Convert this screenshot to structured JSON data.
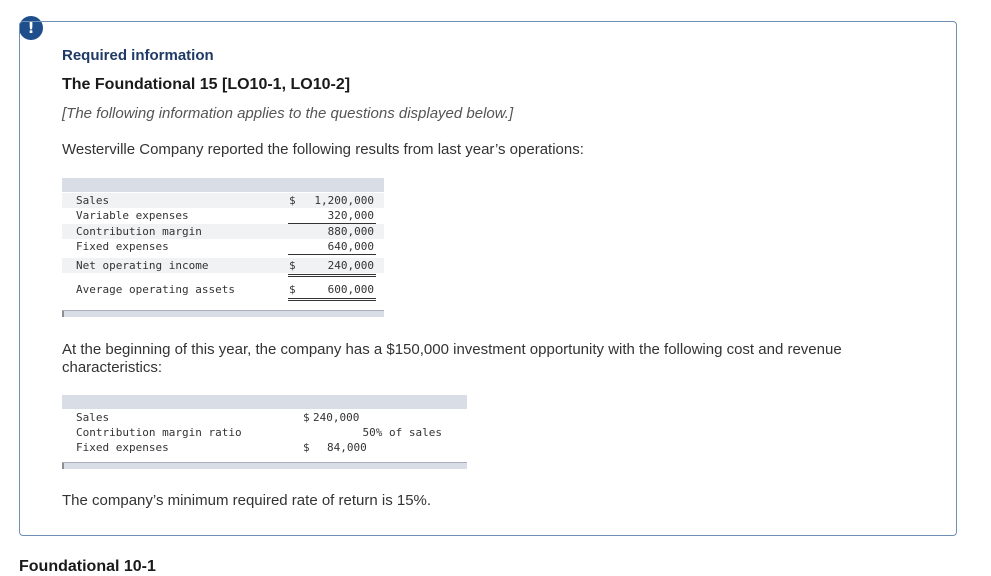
{
  "alert": {
    "icon": "exclamation-icon",
    "glyph": "!"
  },
  "header": {
    "required_label": "Required information",
    "title": "The Foundational 15 [LO10-1, LO10-2]",
    "note": "[The following information applies to the questions displayed below.]"
  },
  "intro": "Westerville Company reported the following results from last year’s operations:",
  "table1": {
    "rows": [
      {
        "label": "Sales",
        "currency": "$",
        "value": "1,200,000"
      },
      {
        "label": "Variable expenses",
        "currency": "",
        "value": "320,000"
      },
      {
        "label": "Contribution margin",
        "currency": "",
        "value": "880,000"
      },
      {
        "label": "Fixed expenses",
        "currency": "",
        "value": "640,000"
      },
      {
        "label": "Net operating income",
        "currency": "$",
        "value": "240,000"
      },
      {
        "label": "Average operating assets",
        "currency": "$",
        "value": "600,000"
      }
    ]
  },
  "opportunity_text": "At the beginning of this year, the company has a $150,000 investment opportunity with the following cost and revenue characteristics:",
  "table2": {
    "rows": [
      {
        "label": "Sales",
        "currency": "$",
        "value": "240,000"
      },
      {
        "label": "Contribution margin ratio",
        "currency": "",
        "value": "50% of sales"
      },
      {
        "label": "Fixed expenses",
        "currency": "$",
        "value": "84,000"
      }
    ]
  },
  "required_return_text": "The company’s minimum required rate of return is 15%.",
  "footer_heading": "Foundational 10-1"
}
